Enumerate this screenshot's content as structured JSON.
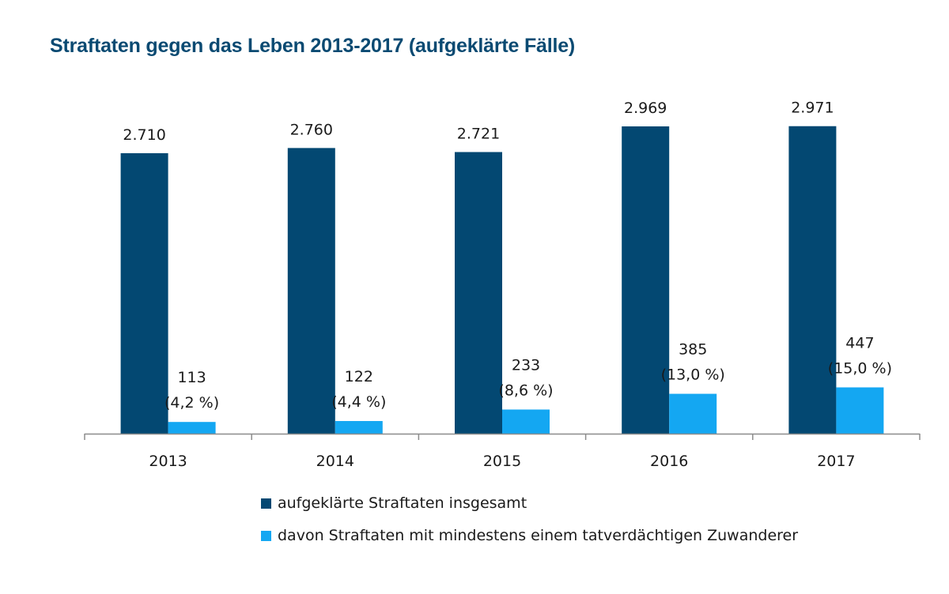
{
  "title": "Straftaten gegen das Leben 2013-2017 (aufgeklärte Fälle)",
  "colors": {
    "series1": "#034872",
    "series2": "#14a7f2",
    "axis": "#8c8c8c",
    "title": "#0a4a72"
  },
  "chart_data": {
    "type": "bar",
    "title": "Straftaten gegen das Leben 2013-2017 (aufgeklärte Fälle)",
    "categories": [
      "2013",
      "2014",
      "2015",
      "2016",
      "2017"
    ],
    "series": [
      {
        "name": "aufgeklärte Straftaten insgesamt",
        "values": [
          2710,
          2760,
          2721,
          2969,
          2971
        ],
        "labels": [
          "2.710",
          "2.760",
          "2.721",
          "2.969",
          "2.971"
        ]
      },
      {
        "name": "davon Straftaten mit mindestens einem tatverdächtigen Zuwanderer",
        "values": [
          113,
          122,
          233,
          385,
          447
        ],
        "labels": [
          "113",
          "122",
          "233",
          "385",
          "447"
        ],
        "percent_labels": [
          "(4,2 %)",
          "(4,4 %)",
          "(8,6 %)",
          "(13,0 %)",
          "(15,0 %)"
        ]
      }
    ],
    "ylim": [
      0,
      3000
    ],
    "grid": false,
    "legend_position": "bottom"
  }
}
